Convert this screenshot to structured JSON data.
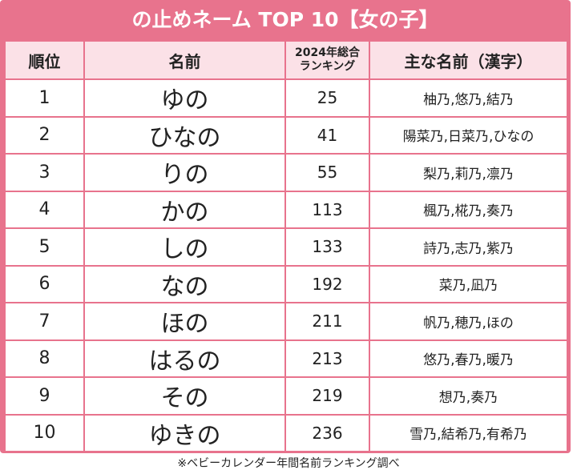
{
  "title": "の止めネーム TOP 10【女の子】",
  "table": {
    "header": [
      "順位",
      "名前",
      "2024年総合\nランキング",
      "主な名前（漢字）"
    ],
    "rows": [
      [
        1,
        "ゆの",
        25,
        "柚乃,悠乃,結乃"
      ],
      [
        2,
        "ひなの",
        41,
        "陽菜乃,日菜乃,ひなの"
      ],
      [
        3,
        "りの",
        55,
        "梨乃,莉乃,凛乃"
      ],
      [
        4,
        "かの",
        113,
        "楓乃,椛乃,奏乃"
      ],
      [
        5,
        "しの",
        133,
        "詩乃,志乃,紫乃"
      ],
      [
        6,
        "なの",
        192,
        "菜乃,凪乃"
      ],
      [
        7,
        "ほの",
        211,
        "帆乃,穂乃,ほの"
      ],
      [
        8,
        "はるの",
        213,
        "悠乃,春乃,暖乃"
      ],
      [
        9,
        "その",
        219,
        "想乃,奏乃"
      ],
      [
        10,
        "ゆきの",
        236,
        "雪乃,結希乃,有希乃"
      ]
    ]
  },
  "note": "※ベビーカレンダー年間名前ランキング調べ"
}
